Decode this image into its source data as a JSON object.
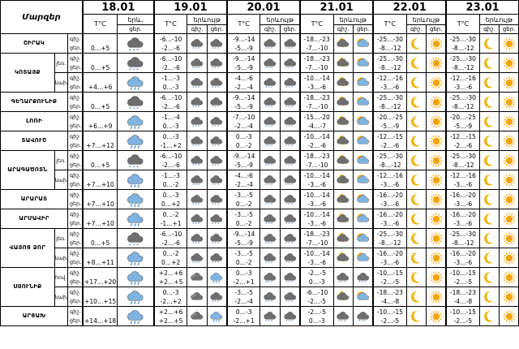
{
  "header": {
    "region_title": "Մարզեր",
    "dates": [
      "18.01",
      "19.01",
      "20.01",
      "21.01",
      "22.01",
      "23.01"
    ],
    "temp_label": "T°C",
    "weather_label": "երևույթ",
    "weather_label_short": "երև.",
    "night_label": "գիշ.",
    "day_label": "ցեր."
  },
  "sub_labels": {
    "lowland": "լեռ.",
    "plain": "նախ.",
    "mountain": "լեռ."
  },
  "rows": [
    {
      "region": "ՇԻՐԱԿ",
      "sub": "",
      "d18": {
        "temp": [
          "",
          "0…+5"
        ],
        "icon": "cloud-snow-icon"
      },
      "days": [
        {
          "temps": [
            "-6…-10",
            "-2…-6"
          ],
          "icons": [
            "cloud-snow-icon",
            "cloud-snow-icon"
          ]
        },
        {
          "temps": [
            "-9…-14",
            "-5…-9"
          ],
          "icons": [
            "cloud-snow-icon",
            "cloud-snow-icon"
          ]
        },
        {
          "temps": [
            "-18…-23",
            "-7…-10"
          ],
          "icons": [
            "moon-cloud-icon",
            "sun-cloud-icon"
          ]
        },
        {
          "temps": [
            "-25…-30",
            "-8…-12"
          ],
          "icons": [
            "moon-icon",
            "sun-icon"
          ]
        },
        {
          "temps": [
            "-25…-30",
            "-8…-12"
          ],
          "icons": [
            "moon-icon",
            "sun-icon"
          ]
        }
      ]
    },
    {
      "region": "ԿՈՏԱՅՔ",
      "sub": "լեռ.",
      "d18": {
        "temp": [
          "",
          "0…+5"
        ],
        "icon": "cloud-snow-icon"
      },
      "days": [
        {
          "temps": [
            "-6…-10",
            "-2…-6"
          ],
          "icons": [
            "cloud-snow-icon",
            "cloud-snow-icon"
          ]
        },
        {
          "temps": [
            "-9…-14",
            "-5…-9"
          ],
          "icons": [
            "cloud-snow-icon",
            "cloud-snow-icon"
          ]
        },
        {
          "temps": [
            "-18…-23",
            "-7…-10"
          ],
          "icons": [
            "moon-cloud-icon",
            "sun-cloud-icon"
          ]
        },
        {
          "temps": [
            "-25…-30",
            "-8…-12"
          ],
          "icons": [
            "moon-icon",
            "sun-icon"
          ]
        },
        {
          "temps": [
            "-25…-30",
            "-8…-12"
          ],
          "icons": [
            "moon-icon",
            "sun-icon"
          ]
        }
      ]
    },
    {
      "region": "",
      "sub": "նախ.",
      "d18": {
        "temp": [
          "",
          "+4…+6"
        ],
        "icon": "cloud-rain-icon"
      },
      "days": [
        {
          "temps": [
            "-1…-3",
            "0…-3"
          ],
          "icons": [
            "cloud-snow-icon",
            "cloud-snow-icon"
          ]
        },
        {
          "temps": [
            "-4…-6",
            "-2…-4"
          ],
          "icons": [
            "cloud-snow-icon",
            "cloud-snow-icon"
          ]
        },
        {
          "temps": [
            "-10…-14",
            "-3…-6"
          ],
          "icons": [
            "moon-cloud-icon",
            "sun-cloud-icon"
          ]
        },
        {
          "temps": [
            "-12…-16",
            "-3…-6"
          ],
          "icons": [
            "moon-icon",
            "sun-icon"
          ]
        },
        {
          "temps": [
            "-12…-16",
            "-3…-6"
          ],
          "icons": [
            "moon-icon",
            "sun-icon"
          ]
        }
      ]
    },
    {
      "region": "ԳԵՂԱՐՔՈՒՆԻՔ",
      "sub": "",
      "d18": {
        "temp": [
          "",
          "0…+5"
        ],
        "icon": "cloud-snow-icon"
      },
      "days": [
        {
          "temps": [
            "-6…-10",
            "-2…-6"
          ],
          "icons": [
            "cloud-snow-icon",
            "cloud-snow-icon"
          ]
        },
        {
          "temps": [
            "-9…-14",
            "-5…-9"
          ],
          "icons": [
            "cloud-snow-icon",
            "cloud-snow-icon"
          ]
        },
        {
          "temps": [
            "-18…-23",
            "-7…-10"
          ],
          "icons": [
            "moon-cloud-icon",
            "sun-cloud-icon"
          ]
        },
        {
          "temps": [
            "-25…-30",
            "-8…-12"
          ],
          "icons": [
            "moon-icon",
            "sun-icon"
          ]
        },
        {
          "temps": [
            "-25…-30",
            "-8…-12"
          ],
          "icons": [
            "moon-icon",
            "sun-icon"
          ]
        }
      ]
    },
    {
      "region": "ԼՈՌԻ",
      "sub": "",
      "d18": {
        "temp": [
          "",
          "+6…+9"
        ],
        "icon": "cloud-rain-icon"
      },
      "days": [
        {
          "temps": [
            "-1…-4",
            "0…-3"
          ],
          "icons": [
            "cloud-snow-icon",
            "cloud-snow-icon"
          ]
        },
        {
          "temps": [
            "-7…-10",
            "-2…-4"
          ],
          "icons": [
            "cloud-snow-icon",
            "cloud-snow-icon"
          ]
        },
        {
          "temps": [
            "-15…-20",
            "-4…-7"
          ],
          "icons": [
            "moon-cloud-icon",
            "sun-cloud-icon"
          ]
        },
        {
          "temps": [
            "-20…-25",
            "-5…-9"
          ],
          "icons": [
            "moon-icon",
            "sun-icon"
          ]
        },
        {
          "temps": [
            "-20…-25",
            "-5…-9"
          ],
          "icons": [
            "moon-icon",
            "sun-icon"
          ]
        }
      ]
    },
    {
      "region": "ՏԱՎՈՒՇ",
      "sub": "",
      "d18": {
        "temp": [
          "",
          "+7…+12"
        ],
        "icon": "cloud-rain-icon"
      },
      "days": [
        {
          "temps": [
            "0…-3",
            "-1…+2"
          ],
          "icons": [
            "cloud-snow-icon",
            "cloud-snow-icon"
          ]
        },
        {
          "temps": [
            "0…-3",
            "0…-2"
          ],
          "icons": [
            "cloud-snow-icon",
            "cloud-snow-icon"
          ]
        },
        {
          "temps": [
            "-10…-14",
            "-2…-6"
          ],
          "icons": [
            "moon-cloud-icon",
            "sun-cloud-icon"
          ]
        },
        {
          "temps": [
            "-12…-15",
            "-2…-6"
          ],
          "icons": [
            "moon-icon",
            "sun-icon"
          ]
        },
        {
          "temps": [
            "-12…-15",
            "-2…-6"
          ],
          "icons": [
            "moon-icon",
            "sun-icon"
          ]
        }
      ]
    },
    {
      "region": "ԱՐԱԳԱԾՈՏՆ",
      "sub": "լեռ.",
      "d18": {
        "temp": [
          "",
          "0…+5"
        ],
        "icon": "cloud-snow-icon"
      },
      "days": [
        {
          "temps": [
            "-6…-10",
            "-2…-6"
          ],
          "icons": [
            "cloud-snow-icon",
            "cloud-snow-icon"
          ]
        },
        {
          "temps": [
            "-9…-14",
            "-5…-9"
          ],
          "icons": [
            "cloud-snow-icon",
            "cloud-snow-icon"
          ]
        },
        {
          "temps": [
            "-18…-23",
            "-7…-10"
          ],
          "icons": [
            "moon-cloud-icon",
            "sun-cloud-icon"
          ]
        },
        {
          "temps": [
            "-25…-30",
            "-8…-12"
          ],
          "icons": [
            "moon-icon",
            "sun-icon"
          ]
        },
        {
          "temps": [
            "-25…-30",
            "-8…-12"
          ],
          "icons": [
            "moon-icon",
            "sun-icon"
          ]
        }
      ]
    },
    {
      "region": "",
      "sub": "նախ.",
      "d18": {
        "temp": [
          "",
          "+7…+10"
        ],
        "icon": "cloud-rain-icon"
      },
      "days": [
        {
          "temps": [
            "-1…-3",
            "0…-2"
          ],
          "icons": [
            "cloud-snow-icon",
            "cloud-snow-icon"
          ]
        },
        {
          "temps": [
            "-4…-6",
            "-2…-4"
          ],
          "icons": [
            "cloud-snow-icon",
            "cloud-snow-icon"
          ]
        },
        {
          "temps": [
            "-10…-14",
            "-3…-6"
          ],
          "icons": [
            "moon-cloud-icon",
            "sun-cloud-icon"
          ]
        },
        {
          "temps": [
            "-12…-16",
            "-3…-6"
          ],
          "icons": [
            "moon-icon",
            "sun-icon"
          ]
        },
        {
          "temps": [
            "-12…-16",
            "-3…-6"
          ],
          "icons": [
            "moon-icon",
            "sun-icon"
          ]
        }
      ]
    },
    {
      "region": "ԱՐԱՐԱՏ",
      "sub": "",
      "d18": {
        "temp": [
          "",
          "+7…+10"
        ],
        "icon": "cloud-rain-icon"
      },
      "days": [
        {
          "temps": [
            "0…-3",
            "0…+2"
          ],
          "icons": [
            "cloud-snow-icon",
            "cloud-snow-icon"
          ]
        },
        {
          "temps": [
            "-3…-5",
            "0…-2"
          ],
          "icons": [
            "cloud-snow-icon",
            "cloud-snow-icon"
          ]
        },
        {
          "temps": [
            "-10…-14",
            "-3…-6"
          ],
          "icons": [
            "moon-cloud-icon",
            "sun-cloud-icon"
          ]
        },
        {
          "temps": [
            "-16…-20",
            "-3…-6"
          ],
          "icons": [
            "moon-icon",
            "sun-icon"
          ]
        },
        {
          "temps": [
            "-16…-20",
            "-3…-6"
          ],
          "icons": [
            "moon-icon",
            "sun-icon"
          ]
        }
      ]
    },
    {
      "region": "ԱՐՄԱՎԻՐ",
      "sub": "",
      "d18": {
        "temp": [
          "",
          "+7…+10"
        ],
        "icon": "cloud-rain-icon"
      },
      "days": [
        {
          "temps": [
            "0…-2",
            "-1…+1"
          ],
          "icons": [
            "cloud-snow-icon",
            "cloud-snow-icon"
          ]
        },
        {
          "temps": [
            "-3…-5",
            "0…-2"
          ],
          "icons": [
            "cloud-snow-icon",
            "cloud-snow-icon"
          ]
        },
        {
          "temps": [
            "-10…-14",
            "-3…-6"
          ],
          "icons": [
            "moon-cloud-icon",
            "sun-cloud-icon"
          ]
        },
        {
          "temps": [
            "-16…-20",
            "-3…-6"
          ],
          "icons": [
            "moon-icon",
            "sun-icon"
          ]
        },
        {
          "temps": [
            "-16…-20",
            "-3…-6"
          ],
          "icons": [
            "moon-icon",
            "sun-icon"
          ]
        }
      ]
    },
    {
      "region": "ՎԱՅՈՑ ՁՈՐ",
      "sub": "լեռ.",
      "d18": {
        "temp": [
          "",
          "0…+5"
        ],
        "icon": "cloud-snow-icon"
      },
      "days": [
        {
          "temps": [
            "-6…-10",
            "-2…-6"
          ],
          "icons": [
            "cloud-snow-icon",
            "cloud-snow-icon"
          ]
        },
        {
          "temps": [
            "-9…-14",
            "-5…-9"
          ],
          "icons": [
            "cloud-snow-icon",
            "cloud-snow-icon"
          ]
        },
        {
          "temps": [
            "-18…-23",
            "-7…-10"
          ],
          "icons": [
            "moon-cloud-icon",
            "sun-cloud-icon"
          ]
        },
        {
          "temps": [
            "-25…-30",
            "-8…-12"
          ],
          "icons": [
            "moon-icon",
            "sun-icon"
          ]
        },
        {
          "temps": [
            "-25…-30",
            "-8…-12"
          ],
          "icons": [
            "moon-icon",
            "sun-icon"
          ]
        }
      ]
    },
    {
      "region": "",
      "sub": "նախ.",
      "d18": {
        "temp": [
          "",
          "+8…+11"
        ],
        "icon": "cloud-rain-icon"
      },
      "days": [
        {
          "temps": [
            "0…-2",
            "0…+2"
          ],
          "icons": [
            "cloud-snow-icon",
            "cloud-snow-icon"
          ]
        },
        {
          "temps": [
            "-3…-5",
            "0…-2"
          ],
          "icons": [
            "cloud-snow-icon",
            "cloud-snow-icon"
          ]
        },
        {
          "temps": [
            "-10…-14",
            "-3…-6"
          ],
          "icons": [
            "moon-cloud-icon",
            "sun-cloud-icon"
          ]
        },
        {
          "temps": [
            "-16…-20",
            "-3…-6"
          ],
          "icons": [
            "moon-icon",
            "sun-icon"
          ]
        },
        {
          "temps": [
            "-16…-20",
            "-3…-6"
          ],
          "icons": [
            "moon-icon",
            "sun-icon"
          ]
        }
      ]
    },
    {
      "region": "ՍՅՈՒՆԻՔ",
      "sub": "հով.",
      "d18": {
        "temp": [
          "",
          "+17…+20"
        ],
        "icon": "cloud-rain-icon"
      },
      "days": [
        {
          "temps": [
            "+2…+6",
            "+2…+5"
          ],
          "icons": [
            "cloud-icon",
            "cloud-rain-icon"
          ]
        },
        {
          "temps": [
            "0…-3",
            "-2…+1"
          ],
          "icons": [
            "cloud-snow-icon",
            "cloud-snow-icon"
          ]
        },
        {
          "temps": [
            "-2…-5",
            "0…-3"
          ],
          "icons": [
            "cloud-snow-icon",
            "cloud-snow-icon"
          ]
        },
        {
          "temps": [
            "-10…-15",
            "-2…-5"
          ],
          "icons": [
            "moon-icon",
            "sun-icon"
          ]
        },
        {
          "temps": [
            "-10…-15",
            "-2…-5"
          ],
          "icons": [
            "moon-icon",
            "sun-icon"
          ]
        }
      ]
    },
    {
      "region": "",
      "sub": "նախ.",
      "d18": {
        "temp": [
          "",
          "+10…+15"
        ],
        "icon": "cloud-rain-icon"
      },
      "days": [
        {
          "temps": [
            "0…-3",
            "-2…+2"
          ],
          "icons": [
            "cloud-icon",
            "cloud-snow-icon"
          ]
        },
        {
          "temps": [
            "-3…-5",
            "-2…-4"
          ],
          "icons": [
            "cloud-snow-icon",
            "cloud-snow-icon"
          ]
        },
        {
          "temps": [
            "-6…-10",
            "-2…-5"
          ],
          "icons": [
            "moon-cloud-icon",
            "sun-cloud-icon"
          ]
        },
        {
          "temps": [
            "-18…-23",
            "-4…-8"
          ],
          "icons": [
            "moon-icon",
            "sun-icon"
          ]
        },
        {
          "temps": [
            "-18…-23",
            "-4…-8"
          ],
          "icons": [
            "moon-icon",
            "sun-icon"
          ]
        }
      ]
    },
    {
      "region": "ԱՐՑԱԽ",
      "sub": "",
      "d18": {
        "temp": [
          "",
          "+14…+18"
        ],
        "icon": "cloud-rain-icon"
      },
      "days": [
        {
          "temps": [
            "+2…+6",
            "+2…+5"
          ],
          "icons": [
            "cloud-icon",
            "cloud-rain-icon"
          ]
        },
        {
          "temps": [
            "0…-3",
            "-2…+1"
          ],
          "icons": [
            "cloud-snow-icon",
            "cloud-snow-icon"
          ]
        },
        {
          "temps": [
            "-2…-5",
            "0…-3"
          ],
          "icons": [
            "cloud-snow-icon",
            "cloud-snow-icon"
          ]
        },
        {
          "temps": [
            "-10…-15",
            "-2…-5"
          ],
          "icons": [
            "moon-icon",
            "sun-icon"
          ]
        },
        {
          "temps": [
            "-10…-15",
            "-2…-5"
          ],
          "icons": [
            "moon-icon",
            "sun-icon"
          ]
        }
      ]
    }
  ],
  "colors": {
    "sun": "#f5a400",
    "moon": "#f0b400",
    "cloud_dark": "#6e6e6e",
    "cloud_blue": "#7fb3e0",
    "snow": "#2e5c9a",
    "rain": "#2e78c7"
  }
}
